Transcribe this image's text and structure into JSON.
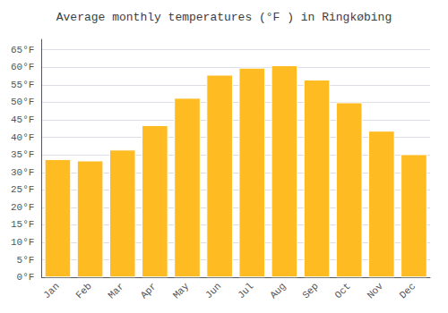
{
  "chart_data": {
    "type": "bar",
    "title": "Average monthly temperatures (°F ) in Ringkøbing",
    "categories": [
      "Jan",
      "Feb",
      "Mar",
      "Apr",
      "May",
      "Jun",
      "Jul",
      "Aug",
      "Sep",
      "Oct",
      "Nov",
      "Dec"
    ],
    "values": [
      33.8,
      33.4,
      36.5,
      43.5,
      51.3,
      57.9,
      59.9,
      60.6,
      56.5,
      50.0,
      41.9,
      35.2
    ],
    "color": "#FFBB22",
    "ylim": [
      0,
      68
    ],
    "yticks": [
      {
        "value": 0,
        "label": "0°F"
      },
      {
        "value": 5,
        "label": "5°F"
      },
      {
        "value": 10,
        "label": "10°F"
      },
      {
        "value": 15,
        "label": "15°F"
      },
      {
        "value": 20,
        "label": "20°F"
      },
      {
        "value": 25,
        "label": "25°F"
      },
      {
        "value": 30,
        "label": "30°F"
      },
      {
        "value": 35,
        "label": "35°F"
      },
      {
        "value": 40,
        "label": "40°F"
      },
      {
        "value": 45,
        "label": "45°F"
      },
      {
        "value": 50,
        "label": "50°F"
      },
      {
        "value": 55,
        "label": "55°F"
      },
      {
        "value": 60,
        "label": "60°F"
      },
      {
        "value": 65,
        "label": "65°F"
      }
    ],
    "grid": true
  }
}
